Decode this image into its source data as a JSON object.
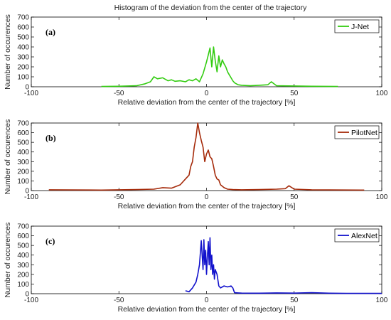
{
  "title": "Histogram of the deviation from the center of the trajectory",
  "chart_data": [
    {
      "type": "line",
      "panel_label": "(a)",
      "series_name": "J-Net",
      "color": "#33cc11",
      "xlabel": "Relative deviation from the center of the trajectory [%]",
      "ylabel": "Number of occurences",
      "xlim": [
        -100,
        100
      ],
      "ylim": [
        0,
        700
      ],
      "xticks": [
        -100,
        -50,
        0,
        50,
        100
      ],
      "yticks": [
        0,
        100,
        200,
        300,
        400,
        500,
        600,
        700
      ],
      "legend_position": "top-right",
      "x": [
        -60,
        -50,
        -40,
        -35,
        -32,
        -30,
        -28,
        -25,
        -22,
        -20,
        -18,
        -15,
        -12,
        -10,
        -8,
        -6,
        -4,
        -2,
        0,
        1,
        2,
        3,
        4,
        5,
        6,
        7,
        8,
        9,
        10,
        11,
        12,
        13,
        14,
        15,
        16,
        18,
        20,
        25,
        30,
        35,
        37,
        40,
        50,
        60,
        75
      ],
      "y": [
        3,
        5,
        10,
        30,
        50,
        100,
        80,
        90,
        60,
        70,
        55,
        60,
        50,
        70,
        60,
        80,
        50,
        130,
        250,
        320,
        390,
        200,
        400,
        260,
        150,
        310,
        200,
        270,
        230,
        200,
        150,
        120,
        90,
        60,
        40,
        20,
        15,
        10,
        15,
        20,
        50,
        10,
        8,
        5,
        3
      ]
    },
    {
      "type": "line",
      "panel_label": "(b)",
      "series_name": "PilotNet",
      "color": "#a52a0a",
      "xlabel": "Relative deviation from the center of the trajectory [%]",
      "ylabel": "Number of occurences",
      "xlim": [
        -100,
        100
      ],
      "ylim": [
        0,
        700
      ],
      "xticks": [
        -100,
        -50,
        0,
        50,
        100
      ],
      "yticks": [
        0,
        100,
        200,
        300,
        400,
        500,
        600,
        700
      ],
      "legend_position": "top-right",
      "x": [
        -90,
        -60,
        -40,
        -30,
        -25,
        -20,
        -15,
        -12,
        -10,
        -9,
        -8,
        -7,
        -6,
        -5,
        -4,
        -3,
        -2,
        -1,
        0,
        1,
        2,
        3,
        4,
        5,
        6,
        7,
        8,
        10,
        12,
        15,
        20,
        30,
        40,
        45,
        47,
        50,
        60,
        90
      ],
      "y": [
        8,
        5,
        10,
        15,
        30,
        25,
        60,
        120,
        160,
        250,
        300,
        450,
        550,
        700,
        600,
        520,
        450,
        300,
        380,
        420,
        350,
        330,
        250,
        160,
        120,
        110,
        60,
        30,
        15,
        10,
        8,
        10,
        15,
        20,
        50,
        15,
        8,
        5
      ]
    },
    {
      "type": "line",
      "panel_label": "(c)",
      "series_name": "AlexNet",
      "color": "#1111cc",
      "xlabel": "Relative deviation from the center of the trajectory [%]",
      "ylabel": "Number of occurences",
      "xlim": [
        -100,
        100
      ],
      "ylim": [
        0,
        700
      ],
      "xticks": [
        -100,
        -50,
        0,
        50,
        100
      ],
      "yticks": [
        0,
        100,
        200,
        300,
        400,
        500,
        600,
        700
      ],
      "legend_position": "top-right",
      "x": [
        -12,
        -10,
        -8,
        -6,
        -5,
        -4,
        -3,
        -2,
        -1.5,
        -1,
        -0.5,
        0,
        0.5,
        1,
        1.5,
        2,
        2.5,
        3,
        3.5,
        4,
        4.5,
        5,
        6,
        7,
        8,
        9,
        10,
        12,
        14,
        15,
        16,
        18,
        20,
        30,
        40,
        50,
        60,
        70,
        80,
        100
      ],
      "y": [
        30,
        20,
        60,
        120,
        200,
        300,
        550,
        250,
        560,
        300,
        450,
        200,
        380,
        540,
        300,
        580,
        250,
        400,
        200,
        300,
        150,
        250,
        200,
        80,
        60,
        70,
        80,
        70,
        80,
        60,
        10,
        8,
        6,
        5,
        8,
        6,
        10,
        5,
        3,
        3
      ]
    }
  ]
}
